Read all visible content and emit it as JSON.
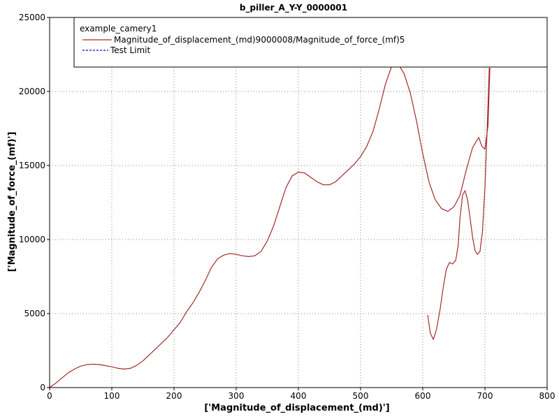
{
  "chart_data": {
    "type": "line",
    "title": "b_piller_A_Y-Y_0000001",
    "xlabel": "['Magnitude_of_displacement_(md)']",
    "ylabel": "['Magnitude_of_force_(mf)']",
    "xlim": [
      0,
      800
    ],
    "ylim": [
      0,
      25000
    ],
    "xticks": [
      "0",
      "100",
      "200",
      "300",
      "400",
      "500",
      "600",
      "700",
      "800"
    ],
    "yticks": [
      "0",
      "5000",
      "10000",
      "15000",
      "20000",
      "25000"
    ],
    "grid": true,
    "legend": {
      "placement": "top",
      "group_title": "example_camery1",
      "entries": [
        {
          "label": "Magnitude_of_displacement_(md)9000008/Magnitude_of_force_(mf)5",
          "color": "#a52a2a",
          "style": "solid"
        },
        {
          "label": "Test Limit",
          "color": "#0000cc",
          "style": "dashed"
        }
      ]
    },
    "series": [
      {
        "name": "Magnitude_of_displacement_(md)9000008/Magnitude_of_force_(mf)5",
        "color": "#a52a2a",
        "points": [
          [
            0,
            0
          ],
          [
            10,
            300
          ],
          [
            20,
            650
          ],
          [
            30,
            1000
          ],
          [
            40,
            1250
          ],
          [
            50,
            1450
          ],
          [
            60,
            1550
          ],
          [
            70,
            1580
          ],
          [
            80,
            1550
          ],
          [
            90,
            1480
          ],
          [
            100,
            1400
          ],
          [
            110,
            1300
          ],
          [
            120,
            1250
          ],
          [
            130,
            1300
          ],
          [
            140,
            1500
          ],
          [
            150,
            1800
          ],
          [
            160,
            2200
          ],
          [
            170,
            2600
          ],
          [
            180,
            3000
          ],
          [
            190,
            3400
          ],
          [
            200,
            3900
          ],
          [
            210,
            4400
          ],
          [
            220,
            5100
          ],
          [
            230,
            5700
          ],
          [
            240,
            6400
          ],
          [
            250,
            7200
          ],
          [
            260,
            8100
          ],
          [
            270,
            8700
          ],
          [
            280,
            8950
          ],
          [
            290,
            9050
          ],
          [
            300,
            9000
          ],
          [
            310,
            8900
          ],
          [
            320,
            8850
          ],
          [
            330,
            8900
          ],
          [
            340,
            9200
          ],
          [
            350,
            9900
          ],
          [
            360,
            10900
          ],
          [
            370,
            12200
          ],
          [
            380,
            13500
          ],
          [
            390,
            14300
          ],
          [
            400,
            14550
          ],
          [
            410,
            14500
          ],
          [
            420,
            14200
          ],
          [
            430,
            13900
          ],
          [
            440,
            13700
          ],
          [
            450,
            13700
          ],
          [
            460,
            13900
          ],
          [
            470,
            14300
          ],
          [
            480,
            14700
          ],
          [
            490,
            15100
          ],
          [
            500,
            15600
          ],
          [
            510,
            16300
          ],
          [
            520,
            17300
          ],
          [
            530,
            18800
          ],
          [
            540,
            20500
          ],
          [
            550,
            21700
          ],
          [
            555,
            21900
          ],
          [
            560,
            21900
          ],
          [
            570,
            21200
          ],
          [
            580,
            19900
          ],
          [
            590,
            18000
          ],
          [
            600,
            15800
          ],
          [
            610,
            13900
          ],
          [
            620,
            12700
          ],
          [
            630,
            12100
          ],
          [
            640,
            11900
          ],
          [
            650,
            12200
          ],
          [
            660,
            13000
          ],
          [
            670,
            14700
          ],
          [
            680,
            16200
          ],
          [
            690,
            16900
          ],
          [
            695,
            16300
          ],
          [
            700,
            16100
          ],
          [
            705,
            17700
          ],
          [
            708,
            21600
          ]
        ]
      },
      {
        "name": "",
        "color": "#a52a2a",
        "points": [
          [
            608,
            4900
          ],
          [
            612,
            3700
          ],
          [
            617,
            3250
          ],
          [
            622,
            3900
          ],
          [
            628,
            5300
          ],
          [
            633,
            6800
          ],
          [
            638,
            8000
          ],
          [
            643,
            8450
          ],
          [
            648,
            8350
          ],
          [
            653,
            8600
          ],
          [
            657,
            9600
          ],
          [
            660,
            11500
          ],
          [
            664,
            13000
          ],
          [
            668,
            13300
          ],
          [
            672,
            12700
          ],
          [
            676,
            11500
          ],
          [
            680,
            10200
          ],
          [
            684,
            9250
          ],
          [
            688,
            9000
          ],
          [
            692,
            9200
          ],
          [
            696,
            10500
          ],
          [
            700,
            13500
          ],
          [
            704,
            18000
          ],
          [
            707,
            21600
          ]
        ]
      }
    ]
  }
}
